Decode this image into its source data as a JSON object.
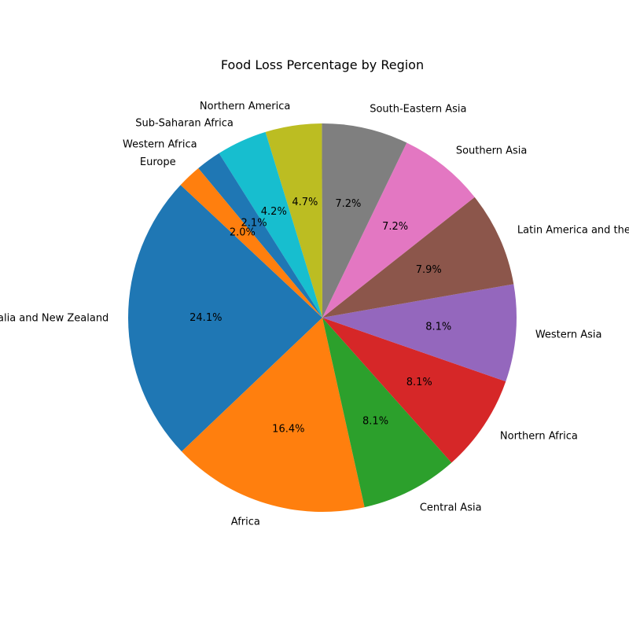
{
  "chart_data": {
    "type": "pie",
    "title": "Food Loss Percentage by Region",
    "slices": [
      {
        "label": "Australia and New Zealand",
        "value": 24.1,
        "pct_label": "24.1%",
        "color": "#1f77b4"
      },
      {
        "label": "Africa",
        "value": 16.4,
        "pct_label": "16.4%",
        "color": "#ff7f0e"
      },
      {
        "label": "Central Asia",
        "value": 8.1,
        "pct_label": "8.1%",
        "color": "#2ca02c"
      },
      {
        "label": "Northern Africa",
        "value": 8.1,
        "pct_label": "8.1%",
        "color": "#d62728"
      },
      {
        "label": "Western Asia",
        "value": 8.1,
        "pct_label": "8.1%",
        "color": "#9467bd"
      },
      {
        "label": "Latin America and the Caribbean",
        "value": 7.9,
        "pct_label": "7.9%",
        "color": "#8c564b"
      },
      {
        "label": "Southern Asia",
        "value": 7.2,
        "pct_label": "7.2%",
        "color": "#e377c2"
      },
      {
        "label": "South-Eastern Asia",
        "value": 7.2,
        "pct_label": "7.2%",
        "color": "#7f7f7f"
      },
      {
        "label": "Northern America",
        "value": 4.7,
        "pct_label": "4.7%",
        "color": "#bcbd22"
      },
      {
        "label": "Sub-Saharan Africa",
        "value": 4.2,
        "pct_label": "4.2%",
        "color": "#17becf"
      },
      {
        "label": "Western Africa",
        "value": 2.1,
        "pct_label": "2.1%",
        "color": "#1f77b4"
      },
      {
        "label": "Europe",
        "value": 2.0,
        "pct_label": "2.0%",
        "color": "#ff7f0e"
      }
    ]
  }
}
